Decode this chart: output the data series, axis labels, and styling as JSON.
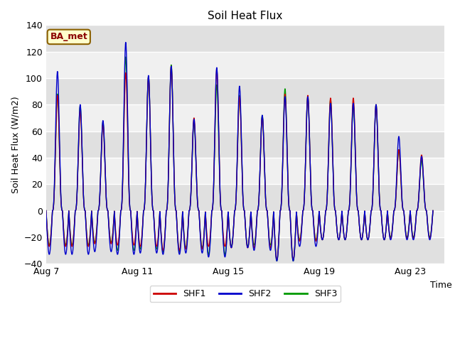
{
  "title": "Soil Heat Flux",
  "ylabel": "Soil Heat Flux (W/m2)",
  "xlabel": "Time",
  "annotation_text": "BA_met",
  "ylim": [
    -40,
    140
  ],
  "yticks": [
    -40,
    -20,
    0,
    20,
    40,
    60,
    80,
    100,
    120,
    140
  ],
  "xtick_labels": [
    "Aug 7",
    "Aug 11",
    "Aug 15",
    "Aug 19",
    "Aug 23"
  ],
  "xtick_positions": [
    7,
    11,
    15,
    19,
    23
  ],
  "legend_labels": [
    "SHF1",
    "SHF2",
    "SHF3"
  ],
  "line_colors": [
    "#cc0000",
    "#0000cc",
    "#009900"
  ],
  "fig_bg_color": "#ffffff",
  "plot_bg_color": "#f0f0f0",
  "band_color": "#e0e0e0",
  "n_days": 17,
  "day_start": 7,
  "day_peaks_shf1": [
    87,
    75,
    65,
    104,
    101,
    109,
    70,
    107,
    86,
    71,
    88,
    87,
    85,
    85,
    80,
    46,
    42
  ],
  "day_peaks_shf2": [
    105,
    80,
    68,
    127,
    102,
    109,
    69,
    108,
    94,
    72,
    86,
    86,
    81,
    81,
    80,
    56,
    41
  ],
  "day_peaks_shf3": [
    88,
    79,
    67,
    116,
    101,
    110,
    67,
    95,
    87,
    72,
    92,
    86,
    84,
    80,
    80,
    46,
    38
  ],
  "night_troughs_shf1": [
    -27,
    -27,
    -25,
    -26,
    -27,
    -30,
    -29,
    -27,
    -28,
    -28,
    -37,
    -23,
    -22,
    -22,
    -22,
    -21,
    -21
  ],
  "night_troughs_shf2": [
    -33,
    -33,
    -31,
    -33,
    -32,
    -33,
    -32,
    -35,
    -28,
    -30,
    -38,
    -27,
    -22,
    -22,
    -22,
    -22,
    -22
  ],
  "night_troughs_shf3": [
    -26,
    -26,
    -24,
    -30,
    -29,
    -31,
    -28,
    -33,
    -27,
    -26,
    -38,
    -22,
    -22,
    -22,
    -22,
    -20,
    -20
  ]
}
